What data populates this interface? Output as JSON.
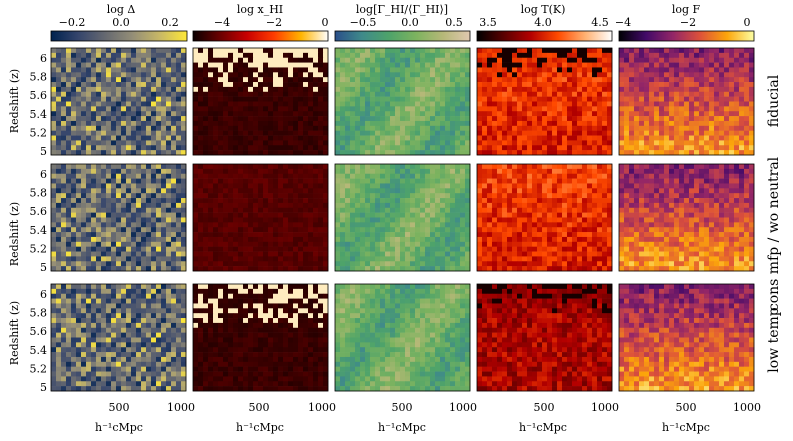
{
  "columns": [
    {
      "title": "log Δ",
      "ticks": [
        "−0.2",
        "0.0",
        "0.2"
      ],
      "cmap": "cividis"
    },
    {
      "title": "log x_HI",
      "ticks": [
        "−4",
        "−2",
        "0"
      ],
      "cmap": "hot"
    },
    {
      "title": "log[Γ_HI/⟨Γ_HI⟩]",
      "ticks": [
        "−0.5",
        "0.0",
        "0.5"
      ],
      "cmap": "gist_earth"
    },
    {
      "title": "log T(K)",
      "ticks": [
        "3.5",
        "4.0",
        "4.5"
      ],
      "cmap": "gist_heat"
    },
    {
      "title": "log F",
      "ticks": [
        "−4",
        "−2",
        "0"
      ],
      "cmap": "inferno"
    }
  ],
  "rows": [
    {
      "label": "fiducial",
      "ylabel": "Redshift (z)"
    },
    {
      "label": "cons mfp / wo neutral",
      "ylabel": "Redshift (z)"
    },
    {
      "label": "low temp",
      "ylabel": "Redshift (z)"
    }
  ],
  "y_ticks": [
    "6",
    "5.8",
    "5.6",
    "5.4",
    "5.2",
    "5"
  ],
  "x_ticks": [
    "500",
    "1000"
  ],
  "x_label": "h⁻¹cMpc",
  "colors": {
    "cividis": [
      "#00224e",
      "#35456c",
      "#666970",
      "#948e77",
      "#c8b866",
      "#fee838"
    ],
    "hot": [
      "#0b0000",
      "#6a0000",
      "#c80000",
      "#ff3c00",
      "#ffb400",
      "#ffffff"
    ],
    "gist_earth": [
      "#2a4f8a",
      "#3f8a8a",
      "#4ea36a",
      "#7db35f",
      "#b6b878",
      "#e0c8b0"
    ],
    "gist_heat": [
      "#000000",
      "#5a0000",
      "#b40000",
      "#ff4a00",
      "#ffb070",
      "#ffffff"
    ],
    "inferno": [
      "#000004",
      "#420a68",
      "#932667",
      "#dd513a",
      "#fca50a",
      "#fcffa4"
    ]
  }
}
